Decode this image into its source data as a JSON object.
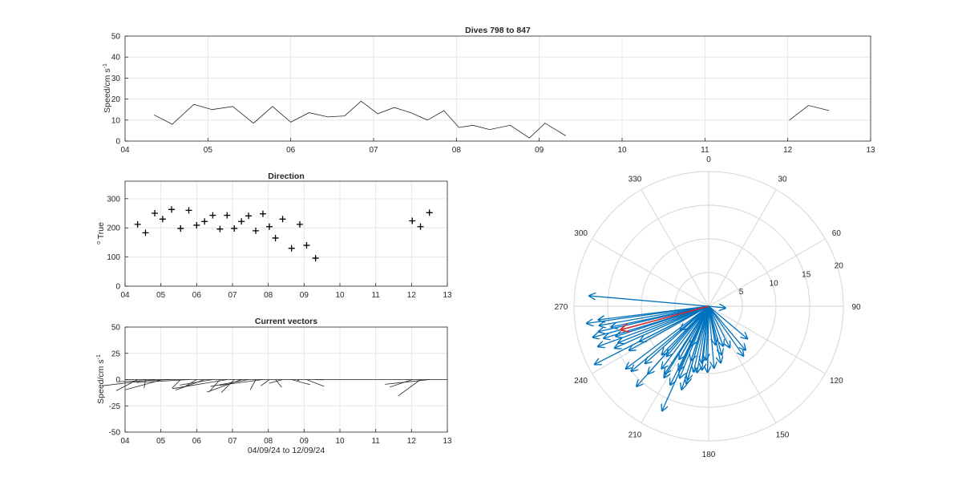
{
  "chart_data": [
    {
      "type": "line",
      "title": "Dives 798 to 847",
      "ylabel": "Speed/cm s",
      "ylabel_sup": "-1",
      "xlim": [
        4,
        13
      ],
      "ylim": [
        0,
        50
      ],
      "xticks": [
        "04",
        "05",
        "06",
        "07",
        "08",
        "09",
        "10",
        "11",
        "12",
        "13"
      ],
      "yticks": [
        "0",
        "10",
        "20",
        "30",
        "40",
        "50"
      ],
      "grid": true,
      "series": [
        {
          "x": [
            4.35,
            4.57,
            4.83,
            5.05,
            5.3,
            5.55,
            5.78,
            6.0,
            6.22,
            6.45,
            6.65,
            6.85,
            7.05,
            7.25,
            7.45,
            7.65,
            7.85,
            8.03,
            8.2,
            8.4,
            8.65,
            8.88,
            9.07,
            9.32
          ],
          "y": [
            12.5,
            8,
            17.5,
            15,
            16.5,
            8.5,
            16.5,
            9,
            13.5,
            11.5,
            12,
            19,
            13,
            16,
            13.5,
            10,
            14.5,
            6.5,
            7.5,
            5.5,
            7.5,
            1.5,
            8.5,
            2.5
          ]
        },
        {
          "x": [
            12.02,
            12.25,
            12.5
          ],
          "y": [
            10,
            17,
            14.5
          ]
        }
      ]
    },
    {
      "type": "scatter",
      "title": "Direction",
      "ylabel": "True",
      "ylabel_sup": "o",
      "xlim": [
        4,
        13
      ],
      "ylim": [
        0,
        360
      ],
      "xticks": [
        "04",
        "05",
        "06",
        "07",
        "08",
        "09",
        "10",
        "11",
        "12",
        "13"
      ],
      "yticks": [
        "0",
        "100",
        "200",
        "300"
      ],
      "grid": true,
      "marker": "+",
      "x": [
        4.35,
        4.57,
        4.83,
        5.05,
        5.3,
        5.55,
        5.78,
        6.0,
        6.22,
        6.45,
        6.65,
        6.85,
        7.05,
        7.25,
        7.45,
        7.65,
        7.85,
        8.03,
        8.2,
        8.4,
        8.65,
        8.88,
        9.07,
        9.32,
        12.02,
        12.25,
        12.5
      ],
      "y": [
        212,
        183,
        250,
        230,
        263,
        198,
        260,
        209,
        222,
        243,
        196,
        243,
        198,
        222,
        241,
        190,
        248,
        204,
        165,
        230,
        130,
        212,
        140,
        96,
        224,
        204,
        252
      ]
    },
    {
      "type": "vector",
      "title": "Current vectors",
      "ylabel": "Speed/cm s",
      "ylabel_sup": "-1",
      "xlabel": "04/09/24 to 12/09/24",
      "xlim": [
        4,
        13
      ],
      "ylim": [
        -50,
        50
      ],
      "xticks": [
        "04",
        "05",
        "06",
        "07",
        "08",
        "09",
        "10",
        "11",
        "12",
        "13"
      ],
      "yticks": [
        "-50",
        "-25",
        "0",
        "25",
        "50"
      ],
      "grid": true,
      "x": [
        4.35,
        4.57,
        4.83,
        5.05,
        5.3,
        5.55,
        5.78,
        6.0,
        6.22,
        6.45,
        6.65,
        6.85,
        7.05,
        7.25,
        7.45,
        7.65,
        7.85,
        8.03,
        8.2,
        8.4,
        8.65,
        8.88,
        9.07,
        9.32,
        12.02,
        12.25,
        12.5
      ],
      "speed": [
        12.5,
        8,
        17.5,
        15,
        16.5,
        8.5,
        16.5,
        9,
        13.5,
        11.5,
        12,
        19,
        13,
        16,
        13.5,
        10,
        14.5,
        6.5,
        7.5,
        5.5,
        7.5,
        1.5,
        8.5,
        2.5,
        10,
        17,
        14.5
      ],
      "direction": [
        212,
        183,
        250,
        230,
        263,
        198,
        260,
        209,
        222,
        243,
        196,
        243,
        198,
        222,
        241,
        190,
        248,
        204,
        165,
        230,
        130,
        212,
        140,
        96,
        224,
        204,
        252
      ]
    },
    {
      "type": "polar",
      "angle_labels": [
        "0",
        "30",
        "60",
        "90",
        "120",
        "150",
        "180",
        "210",
        "240",
        "270",
        "300",
        "330"
      ],
      "radial_ticks": [
        5,
        10,
        15,
        20
      ],
      "rmax": 20,
      "arrow_color": "#0072bd",
      "mean_color": "#d62728",
      "arrows": [
        [
          12.5,
          212
        ],
        [
          8,
          183
        ],
        [
          17.5,
          250
        ],
        [
          15,
          230
        ],
        [
          16.5,
          263
        ],
        [
          8.5,
          198
        ],
        [
          16.5,
          260
        ],
        [
          9,
          209
        ],
        [
          13.5,
          222
        ],
        [
          11.5,
          243
        ],
        [
          12,
          196
        ],
        [
          19,
          243
        ],
        [
          13,
          198
        ],
        [
          16,
          222
        ],
        [
          13.5,
          241
        ],
        [
          10,
          190
        ],
        [
          14.5,
          248
        ],
        [
          6.5,
          204
        ],
        [
          7.5,
          165
        ],
        [
          5.5,
          230
        ],
        [
          7.5,
          130
        ],
        [
          1.5,
          212
        ],
        [
          8.5,
          140
        ],
        [
          2.5,
          96
        ],
        [
          10,
          224
        ],
        [
          17,
          204
        ],
        [
          14.5,
          252
        ],
        [
          17.8,
          275
        ],
        [
          18.3,
          262
        ],
        [
          16.8,
          257
        ],
        [
          17.8,
          255
        ],
        [
          14.8,
          258
        ],
        [
          16.3,
          253
        ],
        [
          15.3,
          246
        ],
        [
          15.4,
          233
        ],
        [
          12.7,
          228
        ],
        [
          12,
          213
        ],
        [
          11.6,
          217
        ],
        [
          13,
          206
        ],
        [
          11.5,
          202
        ],
        [
          10.5,
          205
        ],
        [
          9.7,
          220
        ],
        [
          11.4,
          196
        ],
        [
          10,
          193
        ],
        [
          9.5,
          186
        ],
        [
          8.5,
          187
        ],
        [
          9.8,
          181
        ],
        [
          9.2,
          175
        ],
        [
          8.6,
          168
        ],
        [
          9,
          145
        ],
        [
          6.9,
          153
        ],
        [
          6.3,
          160
        ],
        [
          5.8,
          170
        ]
      ],
      "mean_arrow": [
        13.5,
        255
      ]
    }
  ]
}
